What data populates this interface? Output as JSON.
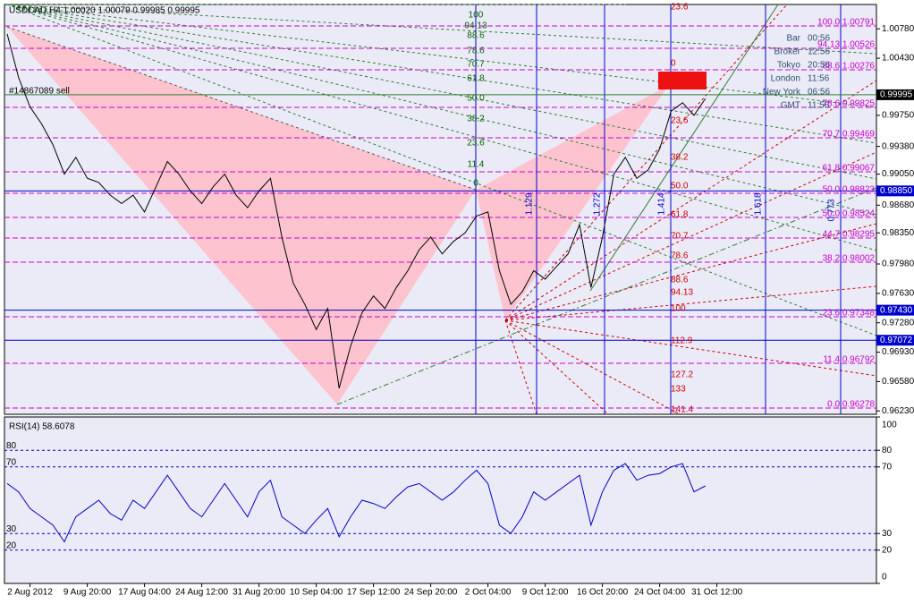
{
  "chart_data": [
    {
      "type": "line",
      "title": "USDCAD,H4 1.00020 1.00079 0.99985 0.99995",
      "subtitle": "#14867089 sell",
      "categories": [
        null,
        null,
        "2 Aug 2012",
        null,
        null,
        null,
        null,
        "9 Aug 20:00",
        null,
        null,
        null,
        null,
        "17 Aug 04:00",
        null,
        null,
        null,
        null,
        "24 Aug 12:00",
        null,
        null,
        null,
        null,
        "31 Aug 20:00",
        null,
        null,
        null,
        null,
        "10 Sep 04:00",
        null,
        null,
        null,
        null,
        "17 Sep 12:00",
        null,
        null,
        null,
        null,
        "24 Sep 20:00",
        null,
        null,
        null,
        null,
        "2 Oct 04:00",
        null,
        null,
        null,
        null,
        "9 Oct 12:00",
        null,
        null,
        null,
        null,
        "16 Oct 20:00",
        null,
        null,
        null,
        null,
        "24 Oct 04:00",
        null,
        null,
        null,
        null,
        "31 Oct 12:00"
      ],
      "series": [
        {
          "name": "USDCAD",
          "color": "#000000",
          "values": [
            1.0072,
            1.002,
            0.9985,
            0.9965,
            0.994,
            0.9905,
            0.9925,
            0.99,
            0.9895,
            0.988,
            0.987,
            0.988,
            0.986,
            0.989,
            0.992,
            0.9905,
            0.9885,
            0.987,
            0.989,
            0.9905,
            0.988,
            0.9865,
            0.9885,
            0.99,
            0.983,
            0.9775,
            0.975,
            0.972,
            0.9745,
            0.965,
            0.97,
            0.974,
            0.976,
            0.9745,
            0.977,
            0.979,
            0.9815,
            0.983,
            0.981,
            0.9825,
            0.9835,
            0.9855,
            0.986,
            0.979,
            0.975,
            0.9765,
            0.979,
            0.978,
            0.9795,
            0.981,
            0.9845,
            0.977,
            0.983,
            0.9905,
            0.9925,
            0.99,
            0.991,
            0.9935,
            0.998,
            0.999,
            0.9975,
            0.9995,
            null
          ]
        }
      ],
      "ylim": [
        0.9619,
        1.0107
      ],
      "yticks": [
        {
          "value": 1.0078,
          "label": "1.00780"
        },
        {
          "value": 1.0043,
          "label": "1.00430"
        },
        {
          "value": 0.9975,
          "label": "0.99750"
        },
        {
          "value": 0.9938,
          "label": "0.99380"
        },
        {
          "value": 0.9905,
          "label": "0.99050"
        },
        {
          "value": 0.9868,
          "label": "0.98680"
        },
        {
          "value": 0.9835,
          "label": "0.98350"
        },
        {
          "value": 0.9798,
          "label": "0.97980"
        },
        {
          "value": 0.9763,
          "label": "0.97630"
        },
        {
          "value": 0.9728,
          "label": "0.97280"
        },
        {
          "value": 0.9693,
          "label": "0.96930"
        },
        {
          "value": 0.9658,
          "label": "0.96580"
        },
        {
          "value": 0.9623,
          "label": "0.96230"
        }
      ],
      "current": {
        "value": 0.99995,
        "label": "0.99995"
      },
      "levels": [
        {
          "value": 0.9885,
          "label": "0.98850"
        },
        {
          "value": 0.9743,
          "label": "0.97430"
        },
        {
          "value": 0.97072,
          "label": "0.97072"
        }
      ],
      "level_color": "#0000cc",
      "clock": [
        {
          "label": "Bar",
          "time": "00:56"
        },
        {
          "label": "Broker",
          "time": "12:56"
        },
        {
          "label": "Tokyo",
          "time": "20:56"
        },
        {
          "label": "London",
          "time": "11:56"
        },
        {
          "label": "New York",
          "time": "06:56"
        },
        {
          "label": "GMT",
          "time": "11:56"
        }
      ],
      "fib_left": [
        "100",
        "94.13",
        "88.6",
        "78.6",
        "70.7",
        "61.8",
        "50.0",
        "38.2",
        "23.6",
        "11.4",
        "0"
      ],
      "fib_red": [
        "23.6",
        "0",
        "23.6",
        "38.2",
        "50.0",
        "61.8",
        "70.7",
        "78.6",
        "88.6",
        "94.13",
        "100",
        "112.9",
        "127.2",
        "133",
        "141.4"
      ],
      "fib_magenta": [
        "100.0 1.00791",
        "94.13 1.00526",
        "88.6 1.00276",
        "78.6 0.99825",
        "70.7 0.99469",
        "61.8 0.99067",
        "50.0 0.98823",
        "50.0 0.98524",
        "44.7 0.98295",
        "38.2 0.98002",
        "23.6 0.97348",
        "11.4 0.96792",
        "0.0 0.96278"
      ],
      "time_markers": [
        "1.129",
        "1.272",
        "1.414",
        "1.618",
        "0.773"
      ]
    },
    {
      "type": "line",
      "title": "RSI(14) 58.6078",
      "series": [
        {
          "name": "RSI(14)",
          "color": "#0000cc",
          "values": [
            60,
            55,
            45,
            40,
            35,
            25,
            40,
            45,
            50,
            42,
            38,
            50,
            45,
            55,
            65,
            55,
            45,
            40,
            50,
            60,
            50,
            40,
            55,
            62,
            40,
            35,
            30,
            38,
            45,
            28,
            40,
            50,
            48,
            45,
            52,
            58,
            60,
            55,
            50,
            55,
            62,
            68,
            60,
            35,
            30,
            40,
            55,
            50,
            55,
            60,
            65,
            35,
            55,
            68,
            72,
            62,
            65,
            66,
            70,
            72,
            55,
            58.6,
            null
          ]
        }
      ],
      "ylim": [
        0,
        100
      ],
      "yticks": [
        0,
        20,
        30,
        70,
        80,
        100
      ],
      "level_ticks": [
        20,
        30,
        70,
        80
      ]
    }
  ]
}
